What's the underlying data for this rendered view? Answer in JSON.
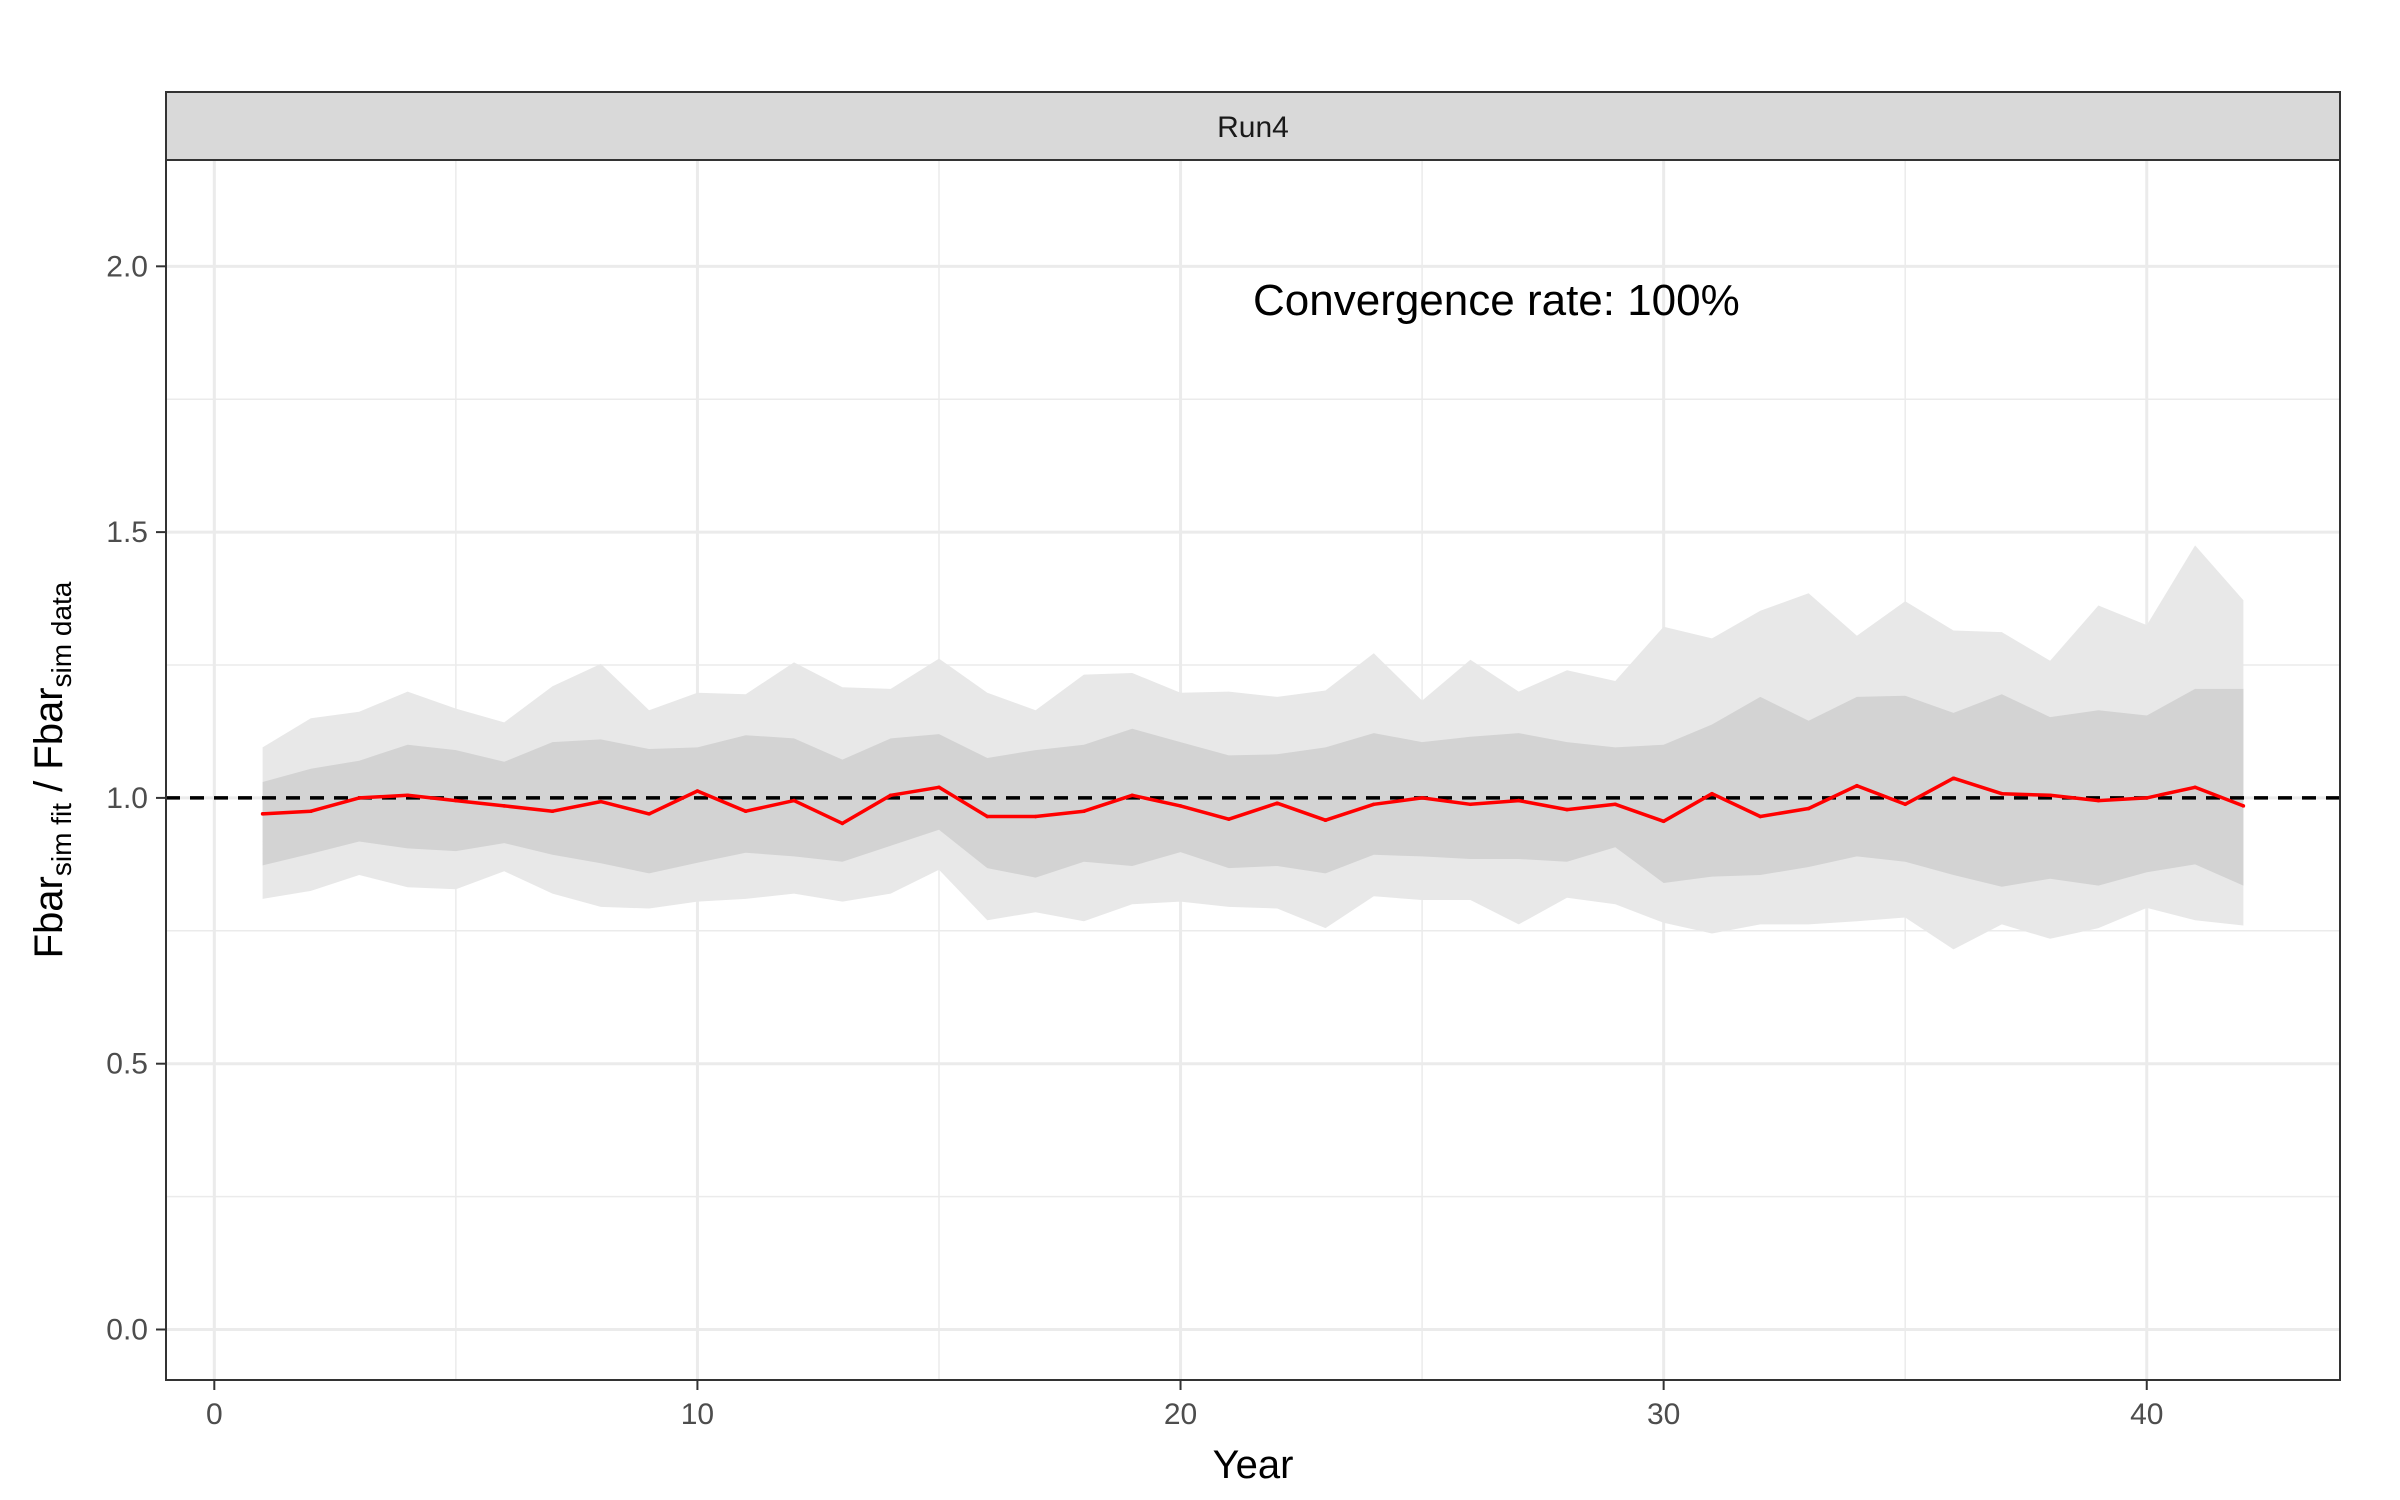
{
  "chart_data": {
    "type": "line",
    "facet_label": "Run4",
    "annotation": "Convergence rate: 100%",
    "xlabel": "Year",
    "ylabel": {
      "numerator_base": "Fbar",
      "numerator_sub": "sim fit",
      "separator": " / ",
      "denominator_base": "Fbar",
      "denominator_sub": "sim data"
    },
    "xlim": [
      -1,
      44
    ],
    "ylim": [
      -0.095,
      2.2
    ],
    "x_ticks": [
      0,
      10,
      20,
      30,
      40
    ],
    "x_tick_labels": [
      "0",
      "10",
      "20",
      "30",
      "40"
    ],
    "y_ticks": [
      0.0,
      0.5,
      1.0,
      1.5,
      2.0
    ],
    "y_tick_labels": [
      "0.0",
      "0.5",
      "1.0",
      "1.5",
      "2.0"
    ],
    "grid": true,
    "reference_line": 1.0,
    "colors": {
      "median_line": "#ff0000",
      "outer_band": "#e8e8e8",
      "inner_band": "#d3d3d3",
      "strip": "#d9d9d9",
      "grid": "#ebebeb",
      "reference": "#000000"
    },
    "x": [
      1,
      2,
      3,
      4,
      5,
      6,
      7,
      8,
      9,
      10,
      11,
      12,
      13,
      14,
      15,
      16,
      17,
      18,
      19,
      20,
      21,
      22,
      23,
      24,
      25,
      26,
      27,
      28,
      29,
      30,
      31,
      32,
      33,
      34,
      35,
      36,
      37,
      38,
      39,
      40,
      41,
      42
    ],
    "series": [
      {
        "role": "median",
        "values": [
          0.97,
          0.975,
          1.0,
          1.005,
          0.995,
          0.985,
          0.975,
          0.993,
          0.97,
          1.013,
          0.975,
          0.995,
          0.952,
          1.005,
          1.02,
          0.965,
          0.965,
          0.975,
          1.005,
          0.985,
          0.96,
          0.99,
          0.958,
          0.988,
          1.0,
          0.988,
          0.995,
          0.978,
          0.988,
          0.956,
          1.008,
          0.965,
          0.98,
          1.023,
          0.988,
          1.037,
          1.008,
          1.005,
          0.995,
          1.0,
          1.02,
          0.985
        ]
      },
      {
        "role": "inner_band_lower",
        "values": [
          0.873,
          0.895,
          0.918,
          0.905,
          0.9,
          0.915,
          0.893,
          0.877,
          0.858,
          0.878,
          0.897,
          0.89,
          0.88,
          0.91,
          0.94,
          0.868,
          0.85,
          0.88,
          0.872,
          0.898,
          0.868,
          0.872,
          0.858,
          0.893,
          0.89,
          0.885,
          0.885,
          0.88,
          0.907,
          0.84,
          0.852,
          0.855,
          0.87,
          0.89,
          0.88,
          0.855,
          0.833,
          0.848,
          0.835,
          0.86,
          0.875,
          0.835
        ]
      },
      {
        "role": "inner_band_upper",
        "values": [
          1.03,
          1.055,
          1.07,
          1.1,
          1.09,
          1.068,
          1.105,
          1.11,
          1.092,
          1.095,
          1.118,
          1.112,
          1.072,
          1.112,
          1.12,
          1.075,
          1.09,
          1.1,
          1.13,
          1.105,
          1.08,
          1.082,
          1.095,
          1.122,
          1.105,
          1.115,
          1.122,
          1.105,
          1.095,
          1.1,
          1.138,
          1.19,
          1.145,
          1.19,
          1.192,
          1.16,
          1.195,
          1.152,
          1.165,
          1.155,
          1.205,
          1.205
        ]
      },
      {
        "role": "outer_band_lower",
        "values": [
          0.81,
          0.825,
          0.855,
          0.832,
          0.828,
          0.862,
          0.82,
          0.795,
          0.792,
          0.805,
          0.81,
          0.82,
          0.805,
          0.82,
          0.865,
          0.77,
          0.785,
          0.768,
          0.8,
          0.805,
          0.795,
          0.792,
          0.755,
          0.815,
          0.808,
          0.808,
          0.762,
          0.812,
          0.8,
          0.765,
          0.745,
          0.762,
          0.762,
          0.768,
          0.775,
          0.715,
          0.762,
          0.735,
          0.755,
          0.793,
          0.77,
          0.76
        ]
      },
      {
        "role": "outer_band_upper",
        "values": [
          1.095,
          1.15,
          1.162,
          1.2,
          1.168,
          1.142,
          1.21,
          1.252,
          1.165,
          1.198,
          1.195,
          1.255,
          1.208,
          1.205,
          1.262,
          1.198,
          1.165,
          1.232,
          1.235,
          1.198,
          1.2,
          1.19,
          1.202,
          1.272,
          1.183,
          1.26,
          1.2,
          1.24,
          1.22,
          1.322,
          1.3,
          1.352,
          1.385,
          1.305,
          1.37,
          1.315,
          1.312,
          1.258,
          1.362,
          1.325,
          1.475,
          1.372
        ]
      }
    ]
  }
}
